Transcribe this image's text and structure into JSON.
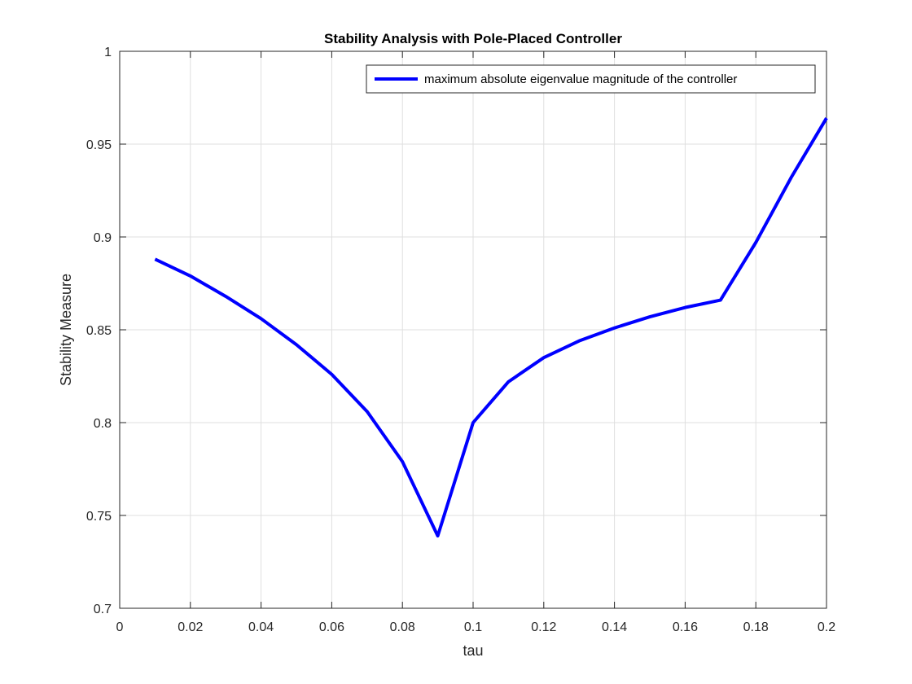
{
  "chart_data": {
    "type": "line",
    "title": "Stability Analysis with Pole-Placed Controller",
    "xlabel": "tau",
    "ylabel": "Stability Measure",
    "xlim": [
      0,
      0.2
    ],
    "ylim": [
      0.7,
      1
    ],
    "xticks": [
      0,
      0.02,
      0.04,
      0.06,
      0.08,
      0.1,
      0.12,
      0.14,
      0.16,
      0.18,
      0.2
    ],
    "xtick_labels": [
      "0",
      "0.02",
      "0.04",
      "0.06",
      "0.08",
      "0.1",
      "0.12",
      "0.14",
      "0.16",
      "0.18",
      "0.2"
    ],
    "yticks": [
      0.7,
      0.75,
      0.8,
      0.85,
      0.9,
      0.95,
      1
    ],
    "ytick_labels": [
      "0.7",
      "0.75",
      "0.8",
      "0.85",
      "0.9",
      "0.95",
      "1"
    ],
    "grid": true,
    "legend_position": "top-right",
    "series": [
      {
        "name": "maximum absolute eigenvalue magnitude of the controller",
        "color": "#0000ff",
        "x": [
          0.01,
          0.02,
          0.03,
          0.04,
          0.05,
          0.06,
          0.07,
          0.08,
          0.09,
          0.1,
          0.11,
          0.12,
          0.13,
          0.14,
          0.15,
          0.16,
          0.17,
          0.18,
          0.19,
          0.2
        ],
        "y": [
          0.888,
          0.879,
          0.868,
          0.856,
          0.842,
          0.826,
          0.806,
          0.779,
          0.739,
          0.8,
          0.822,
          0.835,
          0.844,
          0.851,
          0.857,
          0.862,
          0.866,
          0.897,
          0.932,
          0.964
        ]
      }
    ]
  }
}
